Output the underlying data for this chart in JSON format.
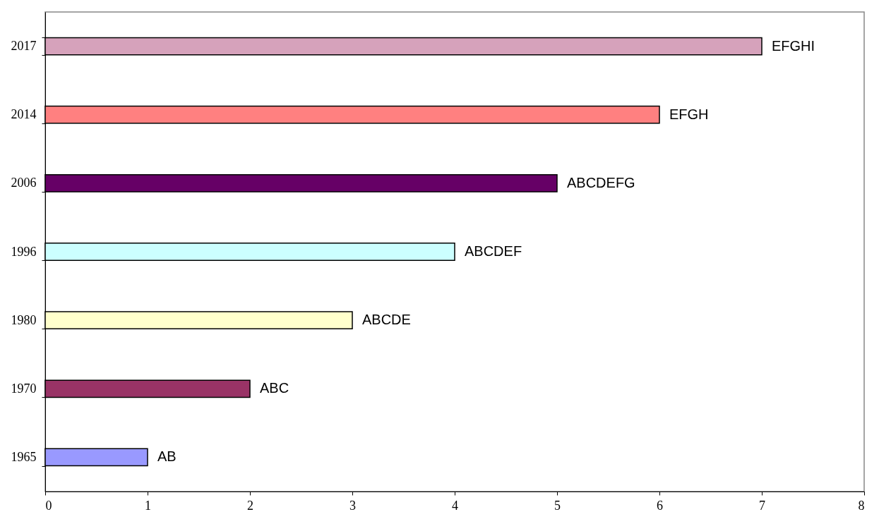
{
  "chart_data": {
    "type": "bar",
    "orientation": "horizontal",
    "categories": [
      "2017",
      "2014",
      "2006",
      "1996",
      "1980",
      "1970",
      "1965"
    ],
    "values": [
      7,
      6,
      5,
      4,
      3,
      2,
      1
    ],
    "colors": [
      "#d6a2bb",
      "#ff8080",
      "#660066",
      "#ccffff",
      "#ffffcc",
      "#993366",
      "#9999ff"
    ],
    "value_labels": [
      "EFGHI",
      "EFGH",
      "ABCDEFG",
      "ABCDEF",
      "ABCDE",
      "ABC",
      "AB"
    ],
    "xlim": [
      0,
      8
    ],
    "xticks": [
      0,
      1,
      2,
      3,
      4,
      5,
      6,
      7,
      8
    ],
    "grid": false
  }
}
